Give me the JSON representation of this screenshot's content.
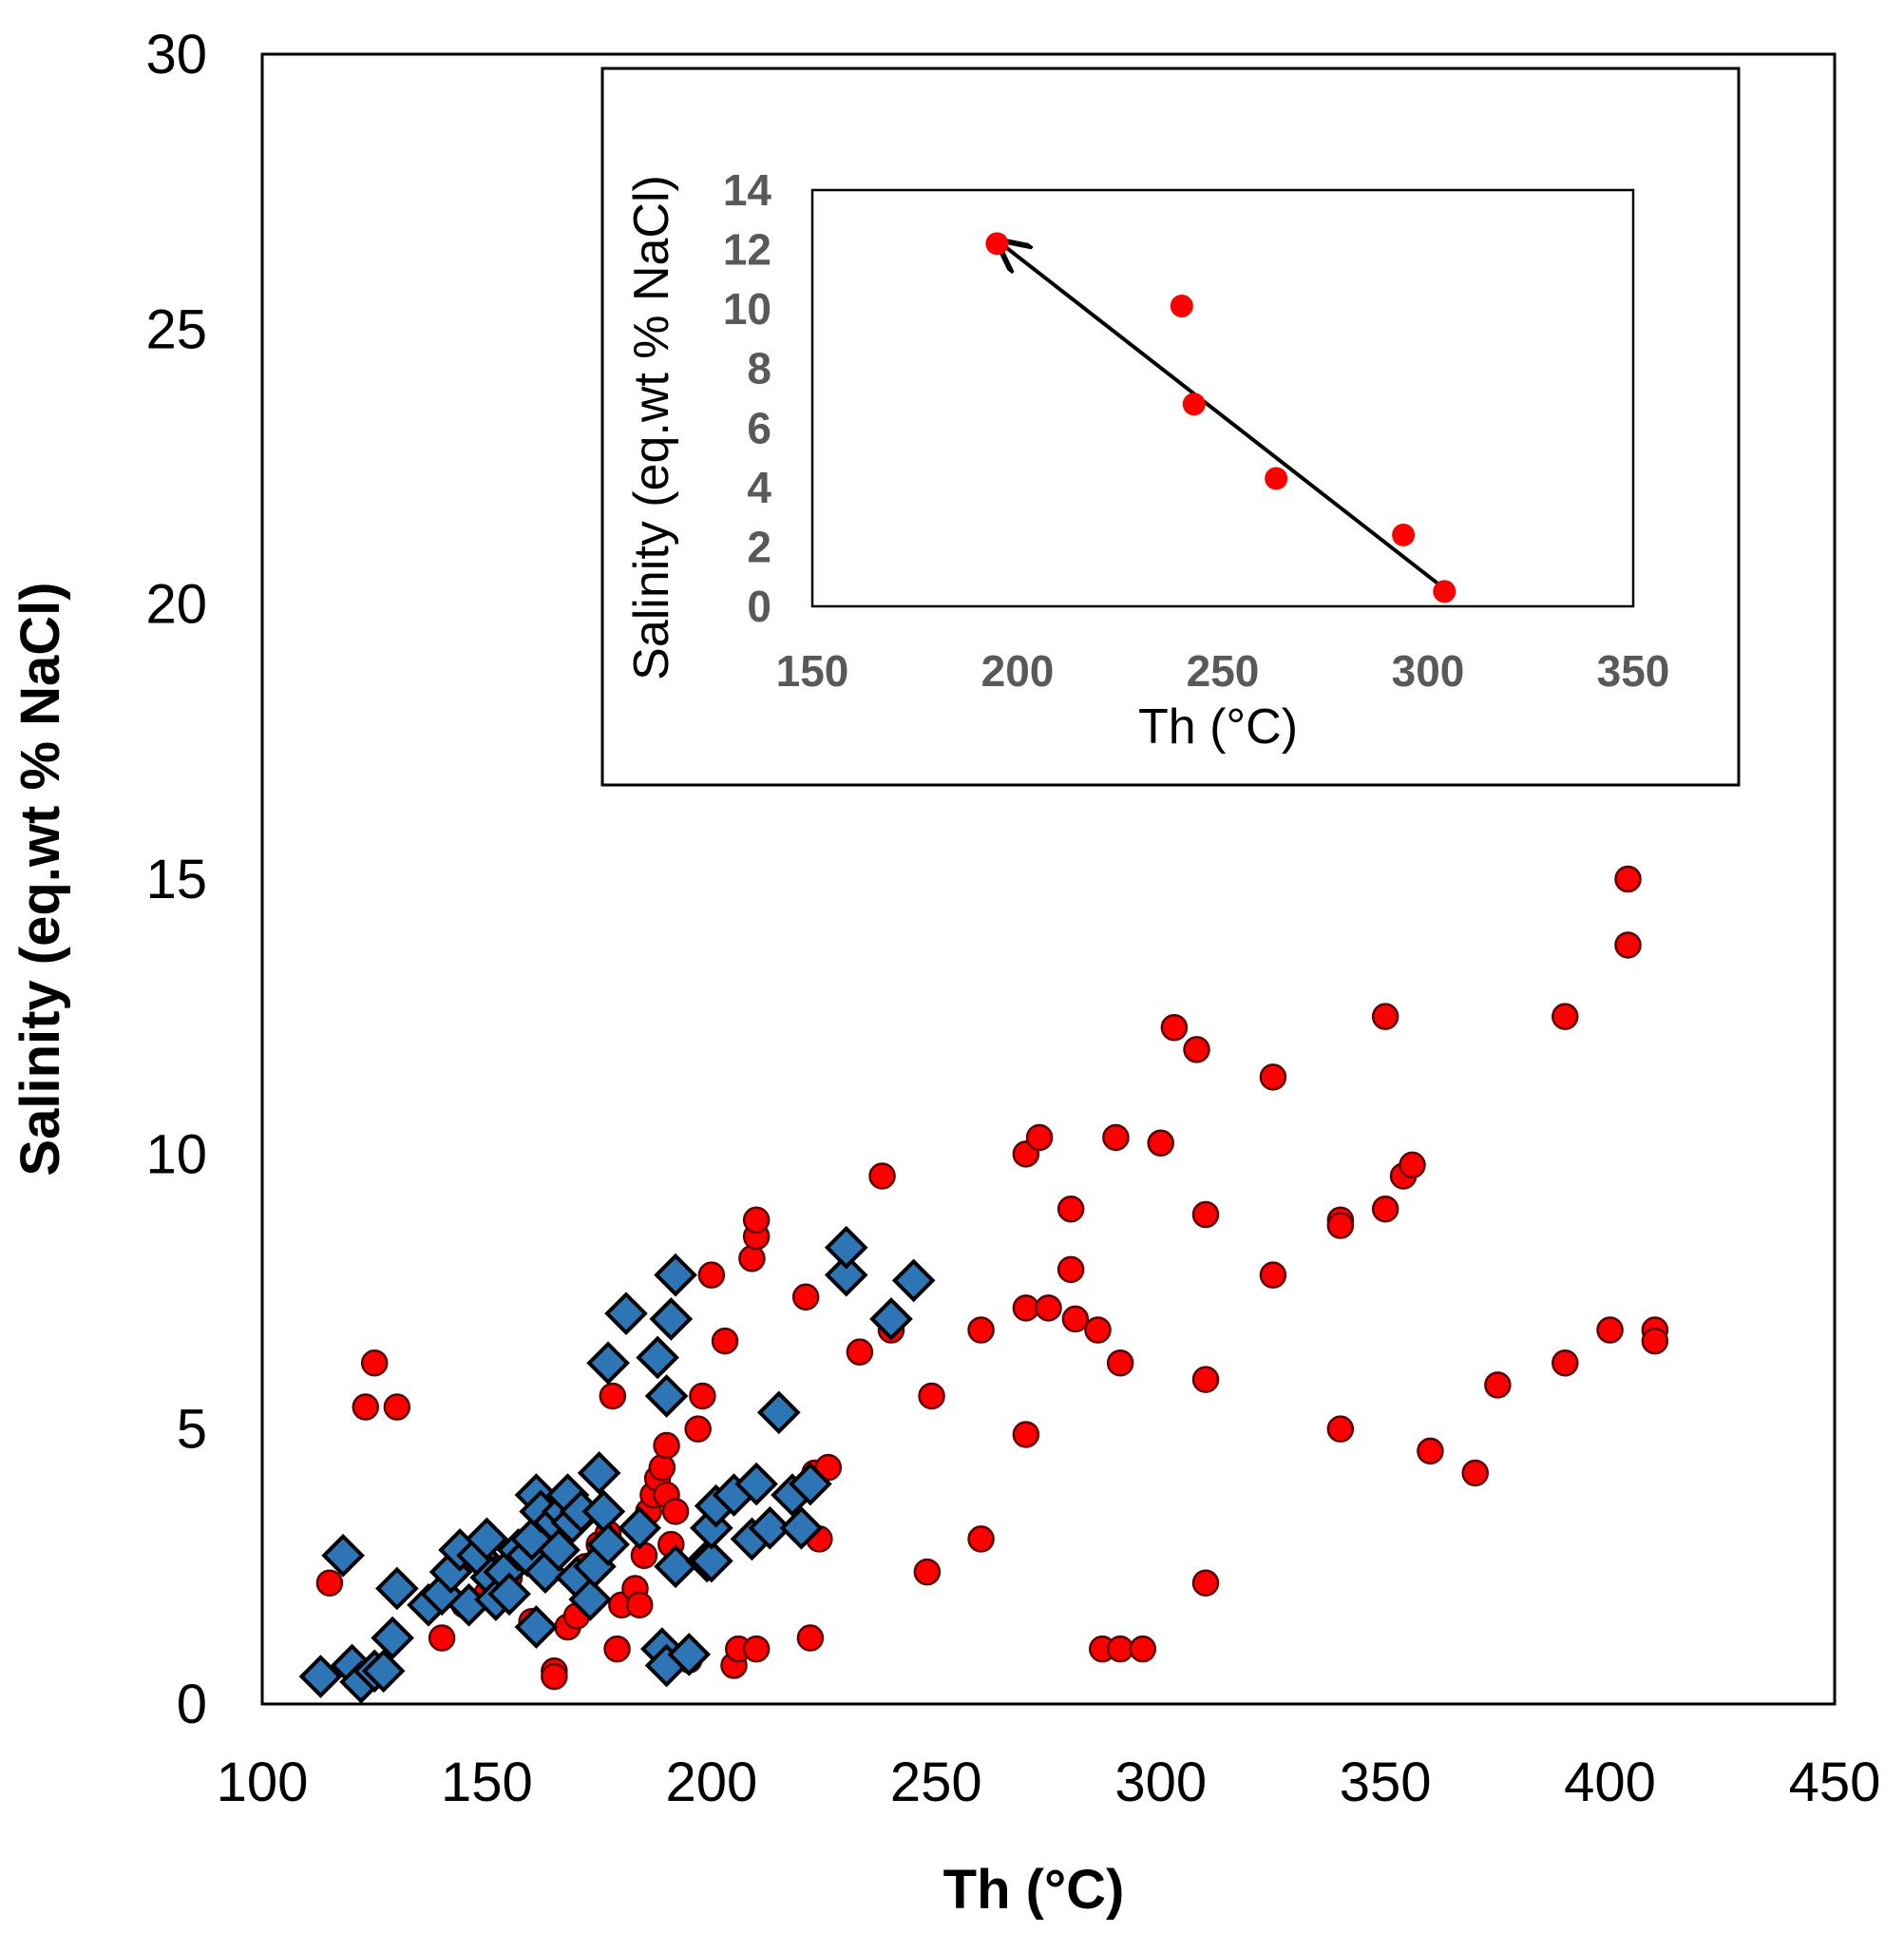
{
  "chart_data": [
    {
      "type": "scatter",
      "xlabel": "Th (°C)",
      "ylabel": "Salinity (eq.wt % NaCl)",
      "xlim": [
        100,
        450
      ],
      "ylim": [
        0,
        30
      ],
      "xticks": [
        "100",
        "150",
        "200",
        "250",
        "300",
        "350",
        "400",
        "450"
      ],
      "yticks": [
        "0",
        "5",
        "10",
        "15",
        "20",
        "25",
        "30"
      ],
      "series": [
        {
          "name": "red-circles",
          "color": "#ff0000",
          "marker": "circle",
          "points": [
            [
              115,
              2.2
            ],
            [
              123,
              5.4
            ],
            [
              125,
              6.2
            ],
            [
              130,
              5.4
            ],
            [
              140,
              1.2
            ],
            [
              145,
              1.8
            ],
            [
              150,
              2.0
            ],
            [
              155,
              2.3
            ],
            [
              160,
              1.5
            ],
            [
              165,
              0.6
            ],
            [
              165,
              0.5
            ],
            [
              168,
              1.4
            ],
            [
              170,
              1.6
            ],
            [
              172,
              2.5
            ],
            [
              175,
              2.9
            ],
            [
              177,
              3.1
            ],
            [
              178,
              5.6
            ],
            [
              179,
              1.0
            ],
            [
              180,
              1.8
            ],
            [
              183,
              2.1
            ],
            [
              184,
              1.8
            ],
            [
              185,
              2.7
            ],
            [
              186,
              3.5
            ],
            [
              187,
              3.8
            ],
            [
              188,
              4.1
            ],
            [
              189,
              4.3
            ],
            [
              190,
              4.7
            ],
            [
              190,
              3.8
            ],
            [
              191,
              2.9
            ],
            [
              192,
              3.5
            ],
            [
              195,
              0.8
            ],
            [
              197,
              5.0
            ],
            [
              198,
              5.6
            ],
            [
              200,
              7.8
            ],
            [
              203,
              6.6
            ],
            [
              205,
              0.7
            ],
            [
              206,
              1.0
            ],
            [
              209,
              8.1
            ],
            [
              210,
              8.5
            ],
            [
              210,
              8.8
            ],
            [
              210,
              1.0
            ],
            [
              221,
              7.4
            ],
            [
              222,
              1.2
            ],
            [
              223,
              4.2
            ],
            [
              224,
              3.0
            ],
            [
              226,
              4.3
            ],
            [
              233,
              6.4
            ],
            [
              238,
              9.6
            ],
            [
              240,
              6.8
            ],
            [
              248,
              2.4
            ],
            [
              249,
              5.6
            ],
            [
              260,
              3.0
            ],
            [
              260,
              6.8
            ],
            [
              270,
              10.0
            ],
            [
              270,
              7.2
            ],
            [
              270,
              4.9
            ],
            [
              273,
              10.3
            ],
            [
              275,
              7.2
            ],
            [
              280,
              9.0
            ],
            [
              280,
              7.9
            ],
            [
              281,
              7.0
            ],
            [
              286,
              6.8
            ],
            [
              287,
              1.0
            ],
            [
              290,
              10.3
            ],
            [
              291,
              6.2
            ],
            [
              291,
              1.0
            ],
            [
              296,
              1.0
            ],
            [
              300,
              10.2
            ],
            [
              303,
              12.3
            ],
            [
              308,
              11.9
            ],
            [
              310,
              8.9
            ],
            [
              310,
              5.9
            ],
            [
              310,
              2.2
            ],
            [
              325,
              11.4
            ],
            [
              325,
              7.8
            ],
            [
              340,
              8.8
            ],
            [
              340,
              8.7
            ],
            [
              340,
              5.0
            ],
            [
              350,
              12.5
            ],
            [
              350,
              9.0
            ],
            [
              354,
              9.6
            ],
            [
              356,
              9.8
            ],
            [
              360,
              4.6
            ],
            [
              370,
              4.2
            ],
            [
              375,
              5.8
            ],
            [
              390,
              12.5
            ],
            [
              390,
              6.2
            ],
            [
              400,
              6.8
            ],
            [
              404,
              15.0
            ],
            [
              404,
              13.8
            ],
            [
              410,
              6.8
            ],
            [
              410,
              6.6
            ]
          ]
        },
        {
          "name": "blue-diamonds",
          "color": "#2e75b6",
          "marker": "diamond",
          "points": [
            [
              113,
              0.5
            ],
            [
              118,
              2.7
            ],
            [
              120,
              0.7
            ],
            [
              122,
              0.4
            ],
            [
              125,
              0.6
            ],
            [
              127,
              0.6
            ],
            [
              129,
              1.2
            ],
            [
              130,
              2.1
            ],
            [
              137,
              1.8
            ],
            [
              140,
              2.0
            ],
            [
              142,
              2.4
            ],
            [
              144,
              2.8
            ],
            [
              146,
              1.8
            ],
            [
              148,
              2.7
            ],
            [
              150,
              3.0
            ],
            [
              151,
              2.3
            ],
            [
              152,
              1.9
            ],
            [
              154,
              2.4
            ],
            [
              155,
              2.0
            ],
            [
              157,
              2.8
            ],
            [
              159,
              2.7
            ],
            [
              160,
              3.0
            ],
            [
              161,
              3.8
            ],
            [
              161,
              1.4
            ],
            [
              162,
              3.5
            ],
            [
              163,
              2.4
            ],
            [
              165,
              3.3
            ],
            [
              166,
              2.8
            ],
            [
              167,
              3.5
            ],
            [
              168,
              3.8
            ],
            [
              169,
              3.3
            ],
            [
              170,
              2.3
            ],
            [
              171,
              3.5
            ],
            [
              173,
              1.9
            ],
            [
              174,
              2.5
            ],
            [
              175,
              4.2
            ],
            [
              176,
              3.5
            ],
            [
              177,
              2.9
            ],
            [
              177,
              6.2
            ],
            [
              181,
              7.1
            ],
            [
              184,
              3.2
            ],
            [
              188,
              6.3
            ],
            [
              189,
              1.0
            ],
            [
              190,
              5.6
            ],
            [
              190,
              0.7
            ],
            [
              191,
              7.0
            ],
            [
              192,
              7.8
            ],
            [
              192,
              2.5
            ],
            [
              195,
              0.9
            ],
            [
              199,
              2.6
            ],
            [
              200,
              2.6
            ],
            [
              200,
              3.2
            ],
            [
              201,
              3.6
            ],
            [
              205,
              3.8
            ],
            [
              209,
              3.0
            ],
            [
              210,
              4.0
            ],
            [
              213,
              3.2
            ],
            [
              215,
              5.3
            ],
            [
              218,
              3.8
            ],
            [
              220,
              3.2
            ],
            [
              222,
              4.0
            ],
            [
              230,
              7.8
            ],
            [
              230,
              8.3
            ],
            [
              240,
              7.0
            ],
            [
              245,
              7.7
            ]
          ]
        }
      ]
    },
    {
      "type": "scatter",
      "inset": true,
      "xlabel": "Th (°C)",
      "ylabel": "Salinity (eq.wt % NaCl)",
      "xlim": [
        150,
        350
      ],
      "ylim": [
        0,
        14
      ],
      "xticks": [
        "150",
        "200",
        "250",
        "300",
        "350"
      ],
      "yticks": [
        "0",
        "2",
        "4",
        "6",
        "8",
        "10",
        "12",
        "14"
      ],
      "series": [
        {
          "name": "inset-red-circles",
          "color": "#ff0000",
          "marker": "circle",
          "points": [
            [
              195,
              12.2
            ],
            [
              240,
              10.1
            ],
            [
              243,
              6.8
            ],
            [
              263,
              4.3
            ],
            [
              294,
              2.4
            ],
            [
              304,
              0.5
            ]
          ]
        }
      ],
      "annotations": [
        {
          "type": "arrow",
          "from": [
            303,
            0.7
          ],
          "to": [
            196,
            12.2
          ]
        }
      ]
    }
  ]
}
